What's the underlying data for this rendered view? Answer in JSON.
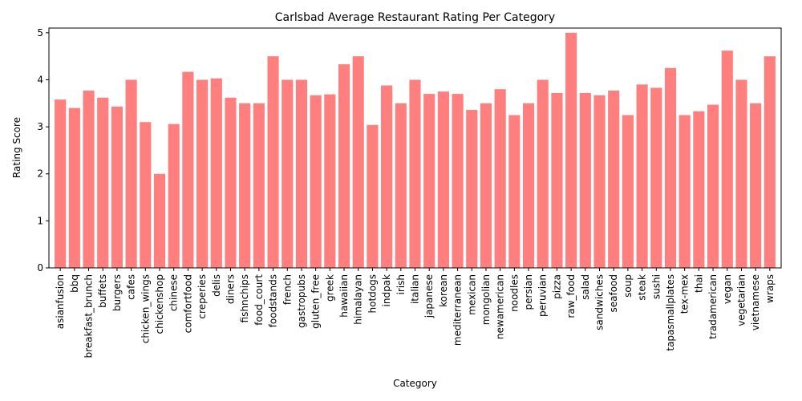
{
  "chart_data": {
    "type": "bar",
    "title": "Carlsbad Average Restaurant Rating Per Category",
    "xlabel": "Category",
    "ylabel": "Rating Score",
    "ylim": [
      0,
      5.1
    ],
    "yticks": [
      0,
      1,
      2,
      3,
      4,
      5
    ],
    "grid": false,
    "legend": "none",
    "bar_color": "#ff7f7f",
    "categories": [
      "asianfusion",
      "bbq",
      "breakfast_brunch",
      "buffets",
      "burgers",
      "cafes",
      "chicken_wings",
      "chickenshop",
      "chinese",
      "comfortfood",
      "creperies",
      "delis",
      "diners",
      "fishnchips",
      "food_court",
      "foodstands",
      "french",
      "gastropubs",
      "gluten_free",
      "greek",
      "hawaiian",
      "himalayan",
      "hotdogs",
      "indpak",
      "irish",
      "italian",
      "japanese",
      "korean",
      "mediterranean",
      "mexican",
      "mongolian",
      "newamerican",
      "noodles",
      "persian",
      "peruvian",
      "pizza",
      "raw_food",
      "salad",
      "sandwiches",
      "seafood",
      "soup",
      "steak",
      "sushi",
      "tapasmallplates",
      "tex-mex",
      "thai",
      "tradamerican",
      "vegan",
      "vegetarian",
      "vietnamese",
      "wraps"
    ],
    "values": [
      3.58,
      3.4,
      3.77,
      3.62,
      3.43,
      4.0,
      3.1,
      2.0,
      3.06,
      4.17,
      4.0,
      4.03,
      3.62,
      3.5,
      3.5,
      4.5,
      4.0,
      4.0,
      3.67,
      3.69,
      4.33,
      4.5,
      3.04,
      3.88,
      3.5,
      4.0,
      3.7,
      3.75,
      3.7,
      3.36,
      3.5,
      3.8,
      3.25,
      3.5,
      4.0,
      3.72,
      5.0,
      3.72,
      3.67,
      3.77,
      3.25,
      3.9,
      3.83,
      4.25,
      3.25,
      3.33,
      3.47,
      4.62,
      4.0,
      3.5,
      4.5
    ]
  }
}
